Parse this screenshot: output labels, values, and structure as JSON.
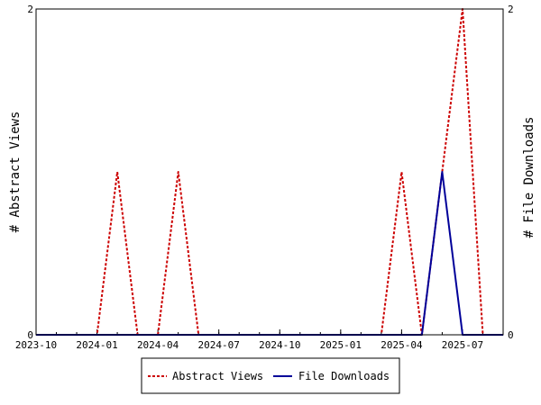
{
  "chart_data": {
    "type": "line",
    "x_ticks": [
      "2023-10",
      "2024-01",
      "2024-04",
      "2024-07",
      "2024-10",
      "2025-01",
      "2025-04",
      "2025-07"
    ],
    "x_range": [
      "2023-10",
      "2025-09"
    ],
    "y_left": {
      "label": "# Abstract Views",
      "range": [
        0,
        2
      ],
      "ticks": [
        "0",
        "2"
      ]
    },
    "y_right": {
      "label": "# File Downloads",
      "range": [
        0,
        2
      ],
      "ticks": [
        "0",
        "2"
      ]
    },
    "series": [
      {
        "name": "Abstract Views",
        "color": "#cc0000",
        "dash": "dashed",
        "axis": "left",
        "points": [
          [
            "2023-10",
            0
          ],
          [
            "2023-11",
            0
          ],
          [
            "2023-12",
            0
          ],
          [
            "2024-01",
            0
          ],
          [
            "2024-02",
            1
          ],
          [
            "2024-03",
            0
          ],
          [
            "2024-04",
            0
          ],
          [
            "2024-05",
            1
          ],
          [
            "2024-06",
            0
          ],
          [
            "2024-07",
            0
          ],
          [
            "2024-08",
            0
          ],
          [
            "2024-09",
            0
          ],
          [
            "2024-10",
            0
          ],
          [
            "2024-11",
            0
          ],
          [
            "2024-12",
            0
          ],
          [
            "2025-01",
            0
          ],
          [
            "2025-02",
            0
          ],
          [
            "2025-03",
            0
          ],
          [
            "2025-04",
            1
          ],
          [
            "2025-05",
            0
          ],
          [
            "2025-06",
            1
          ],
          [
            "2025-07",
            2
          ],
          [
            "2025-08",
            0
          ]
        ]
      },
      {
        "name": "File Downloads",
        "color": "#000099",
        "dash": "solid",
        "axis": "right",
        "points": [
          [
            "2023-10",
            0
          ],
          [
            "2023-11",
            0
          ],
          [
            "2023-12",
            0
          ],
          [
            "2024-01",
            0
          ],
          [
            "2024-02",
            0
          ],
          [
            "2024-03",
            0
          ],
          [
            "2024-04",
            0
          ],
          [
            "2024-05",
            0
          ],
          [
            "2024-06",
            0
          ],
          [
            "2024-07",
            0
          ],
          [
            "2024-08",
            0
          ],
          [
            "2024-09",
            0
          ],
          [
            "2024-10",
            0
          ],
          [
            "2024-11",
            0
          ],
          [
            "2024-12",
            0
          ],
          [
            "2025-01",
            0
          ],
          [
            "2025-02",
            0
          ],
          [
            "2025-03",
            0
          ],
          [
            "2025-04",
            0
          ],
          [
            "2025-05",
            0
          ],
          [
            "2025-06",
            1
          ],
          [
            "2025-07",
            0
          ],
          [
            "2025-08",
            0
          ],
          [
            "2025-09",
            0
          ]
        ]
      }
    ],
    "legend": {
      "placement": "bottom",
      "items": [
        "Abstract Views",
        "File Downloads"
      ]
    },
    "grid": false
  }
}
